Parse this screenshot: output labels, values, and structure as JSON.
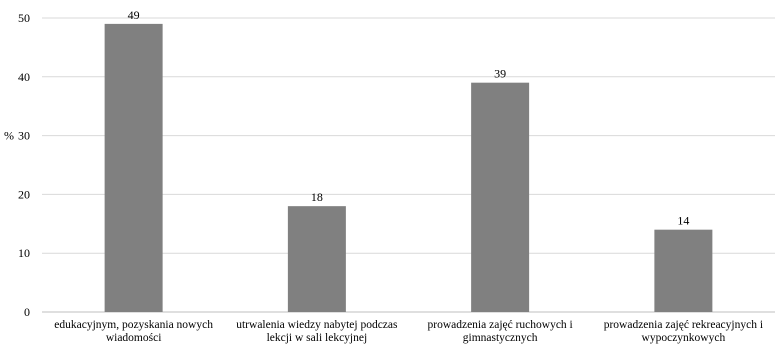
{
  "chart_data": {
    "type": "bar",
    "ylabel": "%",
    "ylim": [
      0,
      50
    ],
    "yticks": [
      0,
      10,
      20,
      30,
      40,
      50
    ],
    "grid": true,
    "categories": [
      [
        "edukacyjnym, pozyskania nowych",
        "wiadomości"
      ],
      [
        "utrwalenia wiedzy nabytej podczas",
        "lekcji w sali lekcyjnej"
      ],
      [
        "prowadzenia zajęć ruchowych i",
        "gimnastycznych"
      ],
      [
        "prowadzenia zajęć rekreacyjnych i",
        "wypoczynkowych"
      ]
    ],
    "values": [
      49,
      18,
      39,
      14
    ],
    "data_labels": [
      "49",
      "18",
      "39",
      "14"
    ],
    "bar_color": "#808080"
  }
}
